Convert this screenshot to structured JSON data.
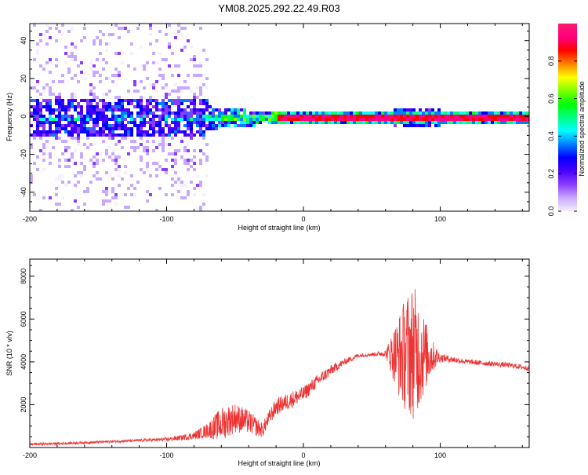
{
  "title": "YM08.2025.292.22.49.R03",
  "colors": {
    "trace": "#ee3333",
    "spectral_ramp": [
      "#f5f0ff",
      "#c9a8ff",
      "#8a3cff",
      "#4b00ff",
      "#0000ff",
      "#0080ff",
      "#00ffff",
      "#00ff80",
      "#00ff00",
      "#80ff00",
      "#ffff00",
      "#ff8000",
      "#ff0000",
      "#ff0080",
      "#ff1a6e"
    ]
  },
  "chart_data": [
    {
      "type": "heatmap",
      "title": "YM08.2025.292.22.49.R03",
      "xlabel": "Height of straight line (km)",
      "ylabel": "Frequency (Hz)",
      "xlim": [
        -200,
        165
      ],
      "ylim": [
        -50,
        49
      ],
      "xticks": [
        -200,
        -100,
        0,
        100
      ],
      "xticklabels": [
        "-200",
        "-100",
        "0",
        "100"
      ],
      "yticks": [
        -40,
        -20,
        0,
        20,
        40
      ],
      "yticklabels": [
        "-40",
        "-20",
        "0",
        "20",
        "40"
      ],
      "colorbar": {
        "label": "Normalized spectral amplitude",
        "range": [
          0,
          1
        ],
        "ticks": [
          0.0,
          0.2,
          0.4,
          0.6,
          0.8
        ],
        "ticklabels": [
          "0.0",
          "0.2",
          "0.4",
          "0.6",
          "0.8"
        ]
      },
      "features": [
        {
          "name": "broadband noise",
          "x_range": [
            -200,
            -70
          ],
          "freq_halfwidth_hz": 49,
          "amplitude": 0.1
        },
        {
          "name": "noisy carrier core",
          "x_range": [
            -200,
            -70
          ],
          "freq_halfwidth_hz": 10,
          "amplitude": 0.22
        },
        {
          "name": "transition",
          "x_range": [
            -70,
            -20
          ],
          "freq_halfwidth_hz": 5,
          "amplitude": 0.5
        },
        {
          "name": "clean carrier",
          "x_range": [
            -20,
            165
          ],
          "freq_center_hz": 0,
          "amplitude": 0.95
        }
      ]
    },
    {
      "type": "line",
      "title": "",
      "xlabel": "Height of straight line (km)",
      "ylabel": "SNR (10 * v/v)",
      "xlim": [
        -200,
        165
      ],
      "ylim": [
        0,
        8800
      ],
      "xticks": [
        -200,
        -100,
        0,
        100
      ],
      "xticklabels": [
        "-200",
        "-100",
        "0",
        "100"
      ],
      "yticks": [
        2000,
        4000,
        6000,
        8000
      ],
      "yticklabels": [
        "2000",
        "4000",
        "6000",
        "8000"
      ],
      "series": [
        {
          "name": "SNR",
          "x": [
            -200,
            -180,
            -160,
            -140,
            -120,
            -100,
            -90,
            -80,
            -70,
            -60,
            -50,
            -40,
            -30,
            -25,
            -20,
            -10,
            0,
            10,
            20,
            30,
            40,
            50,
            60,
            70,
            75,
            80,
            85,
            90,
            95,
            100,
            110,
            120,
            130,
            140,
            150,
            165
          ],
          "y": [
            150,
            180,
            230,
            280,
            330,
            380,
            450,
            550,
            800,
            1100,
            1400,
            1200,
            800,
            1400,
            1900,
            2200,
            2500,
            3100,
            3600,
            4000,
            4300,
            4350,
            4400,
            4300,
            4400,
            4500,
            4400,
            4300,
            4250,
            4200,
            4100,
            4000,
            3950,
            3900,
            3850,
            3700
          ],
          "noise_amplitude": [
            60,
            60,
            60,
            60,
            60,
            90,
            120,
            180,
            350,
            800,
            700,
            550,
            350,
            350,
            400,
            400,
            350,
            300,
            250,
            150,
            100,
            80,
            150,
            2000,
            2800,
            3200,
            2600,
            1500,
            700,
            200,
            150,
            120,
            120,
            120,
            120,
            120
          ]
        }
      ]
    }
  ]
}
